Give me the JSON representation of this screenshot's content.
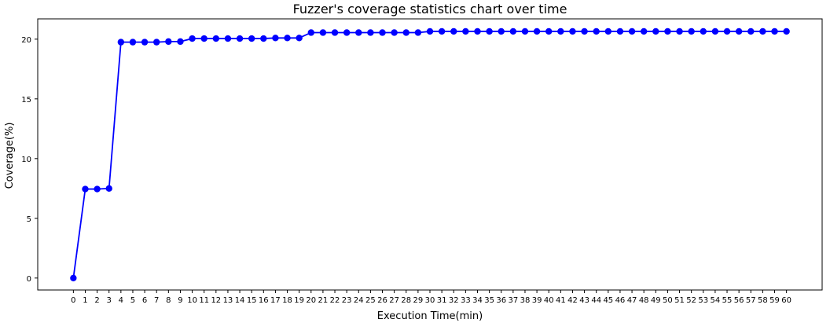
{
  "chart_data": {
    "type": "line",
    "title": "Fuzzer's coverage statistics chart over time",
    "xlabel": "Execution Time(min)",
    "ylabel": "Coverage(%)",
    "xlim": [
      -3,
      63
    ],
    "ylim": [
      -1,
      21.7
    ],
    "x_ticks": [
      0,
      1,
      2,
      3,
      4,
      5,
      6,
      7,
      8,
      9,
      10,
      11,
      12,
      13,
      14,
      15,
      16,
      17,
      18,
      19,
      20,
      21,
      22,
      23,
      24,
      25,
      26,
      27,
      28,
      29,
      30,
      31,
      32,
      33,
      34,
      35,
      36,
      37,
      38,
      39,
      40,
      41,
      42,
      43,
      44,
      45,
      46,
      47,
      48,
      49,
      50,
      51,
      52,
      53,
      54,
      55,
      56,
      57,
      58,
      59,
      60
    ],
    "x_tick_labels": [
      "0",
      "1",
      "2",
      "3",
      "4",
      "5",
      "6",
      "7",
      "8",
      "9",
      "10",
      "11",
      "12",
      "13",
      "14",
      "15",
      "16",
      "17",
      "18",
      "19",
      "20",
      "21",
      "22",
      "23",
      "24",
      "25",
      "26",
      "27",
      "28",
      "29",
      "30",
      "31",
      "32",
      "33",
      "34",
      "35",
      "36",
      "37",
      "38",
      "39",
      "40",
      "41",
      "42",
      "43",
      "44",
      "45",
      "46",
      "47",
      "48",
      "49",
      "50",
      "51",
      "52",
      "53",
      "54",
      "55",
      "56",
      "57",
      "58",
      "59",
      "60"
    ],
    "y_ticks": [
      0,
      5,
      10,
      15,
      20
    ],
    "y_tick_labels": [
      "0",
      "5",
      "10",
      "15",
      "20"
    ],
    "grid": false,
    "series": [
      {
        "color": "#0000ff",
        "x": [
          0,
          1,
          2,
          3,
          4,
          5,
          6,
          7,
          8,
          9,
          10,
          11,
          12,
          13,
          14,
          15,
          16,
          17,
          18,
          19,
          20,
          21,
          22,
          23,
          24,
          25,
          26,
          27,
          28,
          29,
          30,
          31,
          32,
          33,
          34,
          35,
          36,
          37,
          38,
          39,
          40,
          41,
          42,
          43,
          44,
          45,
          46,
          47,
          48,
          49,
          50,
          51,
          52,
          53,
          54,
          55,
          56,
          57,
          58,
          59,
          60
        ],
        "y": [
          0,
          7.45,
          7.45,
          7.5,
          19.75,
          19.75,
          19.75,
          19.75,
          19.8,
          19.8,
          20.05,
          20.05,
          20.05,
          20.05,
          20.05,
          20.05,
          20.05,
          20.1,
          20.1,
          20.1,
          20.55,
          20.55,
          20.55,
          20.55,
          20.55,
          20.55,
          20.55,
          20.55,
          20.55,
          20.55,
          20.65,
          20.65,
          20.65,
          20.65,
          20.65,
          20.65,
          20.65,
          20.65,
          20.65,
          20.65,
          20.65,
          20.65,
          20.65,
          20.65,
          20.65,
          20.65,
          20.65,
          20.65,
          20.65,
          20.65,
          20.65,
          20.65,
          20.65,
          20.65,
          20.65,
          20.65,
          20.65,
          20.65,
          20.65,
          20.65,
          20.65
        ]
      }
    ]
  }
}
